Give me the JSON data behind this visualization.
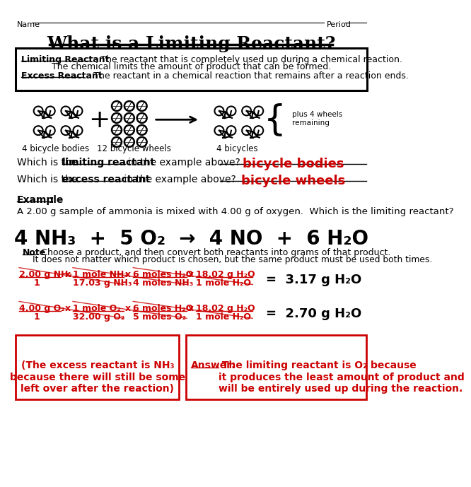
{
  "title": "What is a Limiting Reactant?",
  "bg_color": "#ffffff",
  "text_color": "#000000",
  "red_color": "#cc0000",
  "def_limiting": "Limiting Reactant",
  "def_excess": "Excess Reactant",
  "q1_ans": "bicycle bodies",
  "q2_ans": "bicycle wheels",
  "example_text": "A 2.00 g sample of ammonia is mixed with 4.00 g of oxygen.  Which is the limiting reactant?",
  "box_left": "(The excess reactant is NH₃\nbecause there will still be some\nleft over after the reaction)",
  "box_right_ans": "Answer:",
  "box_right": " The limiting reactant is O₂ because\nit produces the least amount of product and\nwill be entirely used up during the reaction."
}
